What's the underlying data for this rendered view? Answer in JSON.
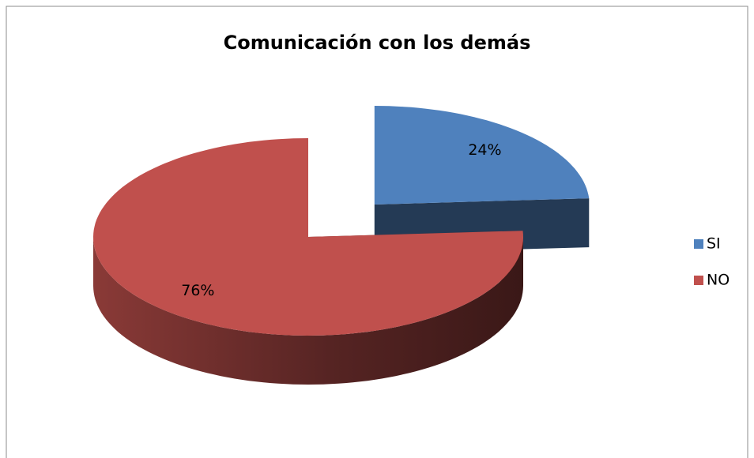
{
  "chart_data": {
    "type": "pie",
    "title": "Comunicación con los demás",
    "categories": [
      "SI",
      "NO"
    ],
    "values": [
      24,
      76
    ],
    "value_labels": [
      "24%",
      "76%"
    ],
    "colors": [
      "#4f81bd",
      "#c0504d"
    ],
    "legend": "right",
    "exploded": [
      0
    ]
  }
}
